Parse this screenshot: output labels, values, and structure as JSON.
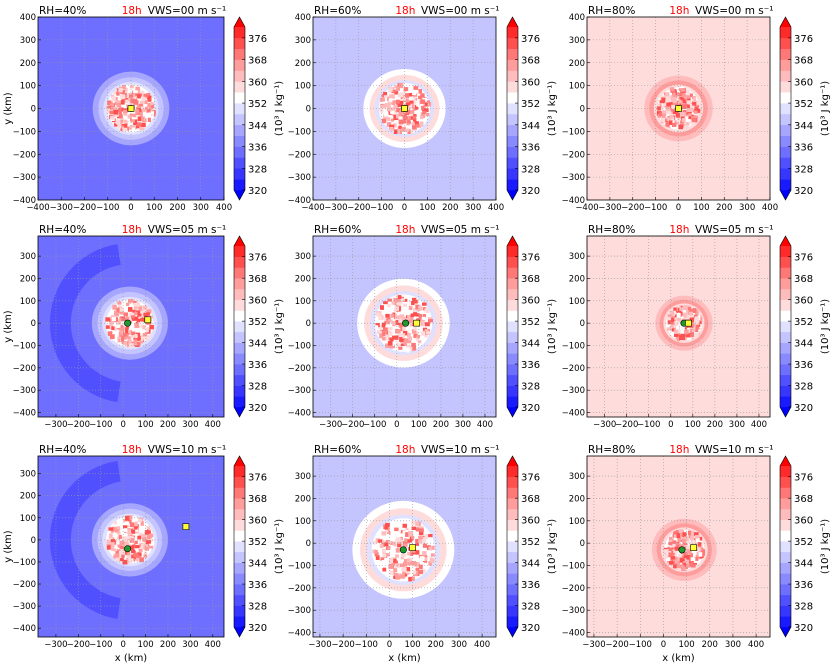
{
  "figure": {
    "x_label": "x (km)",
    "y_label": "y (km)",
    "colorbar_label": "(10³ J kg⁻¹)"
  },
  "colorbar": {
    "ticks": [
      320,
      328,
      336,
      344,
      352,
      360,
      368,
      376
    ],
    "levels": [
      320,
      324,
      328,
      332,
      336,
      340,
      344,
      348,
      352,
      356,
      360,
      364,
      368,
      372,
      376,
      380
    ],
    "colors": [
      "#0000ff",
      "#1a1aff",
      "#3636ff",
      "#5050ff",
      "#6e6eff",
      "#8a8aff",
      "#a6a6ff",
      "#c4c4ff",
      "#e0e0ff",
      "#ffffff",
      "#ffdcdc",
      "#ffbcbc",
      "#ff9c9c",
      "#ff7878",
      "#ff5050",
      "#ff2a2a",
      "#ff0000"
    ]
  },
  "markers": {
    "green": "#1e9a2e",
    "yellow": "#ffff33"
  },
  "chart_data": [
    {
      "type": "heatmap",
      "rh_label": "RH=40%",
      "time_label": "18h",
      "vws_label": "VWS=00 m s⁻¹",
      "xlim": [
        -400,
        400
      ],
      "ylim": [
        -400,
        400
      ],
      "xticks": [
        -400,
        -300,
        -200,
        -100,
        0,
        100,
        200,
        300,
        400
      ],
      "yticks": [
        -400,
        -300,
        -200,
        -100,
        0,
        100,
        200,
        300,
        400
      ],
      "background_level": 334,
      "storm": {
        "center": [
          0,
          0
        ],
        "radius": 165
      },
      "green_center": [
        0,
        0
      ],
      "yellow_center": [
        0,
        0
      ],
      "wake": false
    },
    {
      "type": "heatmap",
      "rh_label": "RH=60%",
      "time_label": "18h",
      "vws_label": "VWS=00 m s⁻¹",
      "xlim": [
        -400,
        400
      ],
      "ylim": [
        -400,
        400
      ],
      "xticks": [
        -400,
        -300,
        -200,
        -100,
        0,
        100,
        200,
        300,
        400
      ],
      "yticks": [
        -400,
        -300,
        -200,
        -100,
        0,
        100,
        200,
        300,
        400
      ],
      "background_level": 346,
      "storm": {
        "center": [
          0,
          0
        ],
        "radius": 180
      },
      "green_center": [
        0,
        0
      ],
      "yellow_center": [
        0,
        0
      ],
      "wake": false
    },
    {
      "type": "heatmap",
      "rh_label": "RH=80%",
      "time_label": "18h",
      "vws_label": "VWS=00 m s⁻¹",
      "xlim": [
        -400,
        400
      ],
      "ylim": [
        -400,
        400
      ],
      "xticks": [
        -400,
        -300,
        -200,
        -100,
        0,
        100,
        200,
        300,
        400
      ],
      "yticks": [
        -400,
        -300,
        -200,
        -100,
        0,
        100,
        200,
        300,
        400
      ],
      "background_level": 357,
      "storm": {
        "center": [
          0,
          0
        ],
        "radius": 150
      },
      "green_center": [
        0,
        0
      ],
      "yellow_center": [
        0,
        0
      ],
      "wake": false
    },
    {
      "type": "heatmap",
      "rh_label": "RH=40%",
      "time_label": "18h",
      "vws_label": "VWS=05 m s⁻¹",
      "xlim": [
        -380,
        450
      ],
      "ylim": [
        -420,
        390
      ],
      "xticks": [
        -300,
        -200,
        -100,
        0,
        100,
        200,
        300,
        400
      ],
      "yticks": [
        -400,
        -300,
        -200,
        -100,
        0,
        100,
        200,
        300
      ],
      "background_level": 334,
      "storm": {
        "center": [
          30,
          0
        ],
        "radius": 170
      },
      "green_center": [
        20,
        0
      ],
      "yellow_center": [
        110,
        15
      ],
      "wake": true
    },
    {
      "type": "heatmap",
      "rh_label": "RH=60%",
      "time_label": "18h",
      "vws_label": "VWS=05 m s⁻¹",
      "xlim": [
        -380,
        450
      ],
      "ylim": [
        -420,
        390
      ],
      "xticks": [
        -300,
        -200,
        -100,
        0,
        100,
        200,
        300,
        400
      ],
      "yticks": [
        -400,
        -300,
        -200,
        -100,
        0,
        100,
        200,
        300
      ],
      "background_level": 346,
      "storm": {
        "center": [
          30,
          0
        ],
        "radius": 210
      },
      "green_center": [
        40,
        0
      ],
      "yellow_center": [
        90,
        0
      ],
      "wake": false
    },
    {
      "type": "heatmap",
      "rh_label": "RH=80%",
      "time_label": "18h",
      "vws_label": "VWS=05 m s⁻¹",
      "xlim": [
        -380,
        450
      ],
      "ylim": [
        -420,
        390
      ],
      "xticks": [
        -300,
        -200,
        -100,
        0,
        100,
        200,
        300,
        400
      ],
      "yticks": [
        -400,
        -300,
        -200,
        -100,
        0,
        100,
        200,
        300
      ],
      "background_level": 357,
      "storm": {
        "center": [
          60,
          0
        ],
        "radius": 130
      },
      "green_center": [
        60,
        0
      ],
      "yellow_center": [
        80,
        0
      ],
      "wake": false
    },
    {
      "type": "heatmap",
      "rh_label": "RH=40%",
      "time_label": "18h",
      "vws_label": "VWS=10 m s⁻¹",
      "xlim": [
        -380,
        450
      ],
      "ylim": [
        -440,
        380
      ],
      "xticks": [
        -300,
        -200,
        -100,
        0,
        100,
        200,
        300,
        400
      ],
      "yticks": [
        -400,
        -300,
        -200,
        -100,
        0,
        100,
        200,
        300
      ],
      "background_level": 334,
      "storm": {
        "center": [
          30,
          0
        ],
        "radius": 170
      },
      "green_center": [
        20,
        -40
      ],
      "yellow_center": [
        280,
        60
      ],
      "wake": true
    },
    {
      "type": "heatmap",
      "rh_label": "RH=60%",
      "time_label": "18h",
      "vws_label": "VWS=10 m s⁻¹",
      "xlim": [
        -330,
        460
      ],
      "ylim": [
        -420,
        390
      ],
      "xticks": [
        -300,
        -200,
        -100,
        0,
        100,
        200,
        300,
        400
      ],
      "yticks": [
        -400,
        -300,
        -200,
        -100,
        0,
        100,
        200,
        300
      ],
      "background_level": 346,
      "storm": {
        "center": [
          60,
          -30
        ],
        "radius": 220
      },
      "green_center": [
        60,
        -30
      ],
      "yellow_center": [
        100,
        -20
      ],
      "wake": false
    },
    {
      "type": "heatmap",
      "rh_label": "RH=80%",
      "time_label": "18h",
      "vws_label": "VWS=10 m s⁻¹",
      "xlim": [
        -330,
        460
      ],
      "ylim": [
        -420,
        390
      ],
      "xticks": [
        -300,
        -200,
        -100,
        0,
        100,
        200,
        300,
        400
      ],
      "yticks": [
        -400,
        -300,
        -200,
        -100,
        0,
        100,
        200,
        300
      ],
      "background_level": 357,
      "storm": {
        "center": [
          90,
          -30
        ],
        "radius": 140
      },
      "green_center": [
        80,
        -30
      ],
      "yellow_center": [
        130,
        -20
      ],
      "wake": false
    }
  ]
}
